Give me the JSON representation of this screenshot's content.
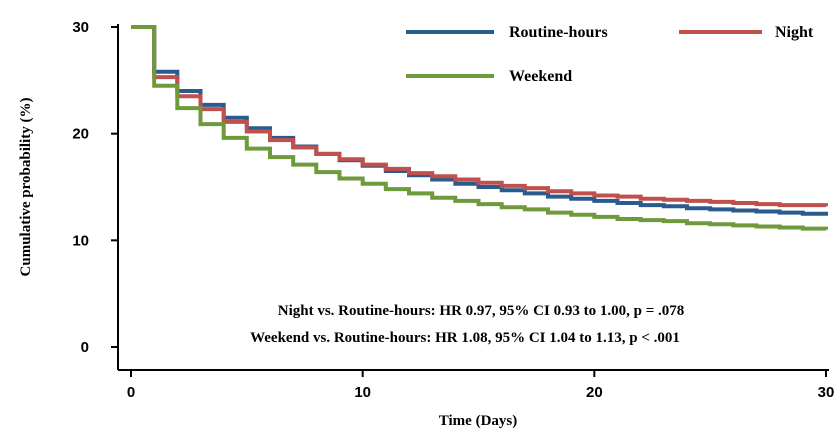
{
  "chart_data": {
    "type": "line",
    "step": true,
    "xlabel": "Time (Days)",
    "ylabel": "Cumulative probability (%)",
    "xlim": [
      0,
      30
    ],
    "ylim": [
      0,
      30
    ],
    "x_ticks": [
      0,
      10,
      20,
      30
    ],
    "y_ticks": [
      0,
      10,
      20,
      30
    ],
    "x_tick_labels": [
      "0",
      "10",
      "20",
      "30"
    ],
    "y_tick_labels": [
      "0",
      "10",
      "20",
      "30"
    ],
    "grid": false,
    "legend": {
      "placement": "top-right",
      "entries": [
        "Routine-hours",
        "Night",
        "Weekend"
      ]
    },
    "series": [
      {
        "name": "Routine-hours",
        "color": "#2b5a8c",
        "x": [
          0,
          1,
          2,
          3,
          4,
          5,
          6,
          7,
          8,
          9,
          10,
          11,
          12,
          13,
          14,
          15,
          16,
          17,
          18,
          19,
          20,
          21,
          22,
          23,
          24,
          25,
          26,
          27,
          28,
          29,
          30
        ],
        "y": [
          30,
          25.8,
          24.0,
          22.7,
          21.5,
          20.5,
          19.6,
          18.8,
          18.1,
          17.5,
          17.0,
          16.5,
          16.1,
          15.7,
          15.3,
          15.0,
          14.7,
          14.4,
          14.1,
          13.9,
          13.7,
          13.5,
          13.3,
          13.2,
          13.0,
          12.9,
          12.8,
          12.7,
          12.6,
          12.5,
          12.3
        ]
      },
      {
        "name": "Night",
        "color": "#c0504d",
        "x": [
          0,
          1,
          2,
          3,
          4,
          5,
          6,
          7,
          8,
          9,
          10,
          11,
          12,
          13,
          14,
          15,
          16,
          17,
          18,
          19,
          20,
          21,
          22,
          23,
          24,
          25,
          26,
          27,
          28,
          29,
          30
        ],
        "y": [
          30,
          25.3,
          23.5,
          22.3,
          21.1,
          20.2,
          19.4,
          18.7,
          18.1,
          17.6,
          17.1,
          16.7,
          16.3,
          16.0,
          15.7,
          15.4,
          15.1,
          14.9,
          14.6,
          14.4,
          14.2,
          14.1,
          13.9,
          13.8,
          13.7,
          13.6,
          13.5,
          13.4,
          13.3,
          13.3,
          13.2
        ]
      },
      {
        "name": "Weekend",
        "color": "#6e9a3c",
        "x": [
          0,
          1,
          2,
          3,
          4,
          5,
          6,
          7,
          8,
          9,
          10,
          11,
          12,
          13,
          14,
          15,
          16,
          17,
          18,
          19,
          20,
          21,
          22,
          23,
          24,
          25,
          26,
          27,
          28,
          29,
          30
        ],
        "y": [
          30,
          24.5,
          22.4,
          20.9,
          19.6,
          18.6,
          17.8,
          17.1,
          16.4,
          15.8,
          15.3,
          14.8,
          14.4,
          14.0,
          13.7,
          13.4,
          13.1,
          12.9,
          12.6,
          12.4,
          12.2,
          12.0,
          11.9,
          11.8,
          11.6,
          11.5,
          11.4,
          11.3,
          11.2,
          11.1,
          11.0
        ]
      }
    ],
    "annotations": [
      "Night vs. Routine-hours: HR 0.97, 95% CI 0.93 to 1.00, p = .078",
      "Weekend vs. Routine-hours: HR 1.08, 95% CI 1.04 to 1.13, p < .001"
    ]
  }
}
